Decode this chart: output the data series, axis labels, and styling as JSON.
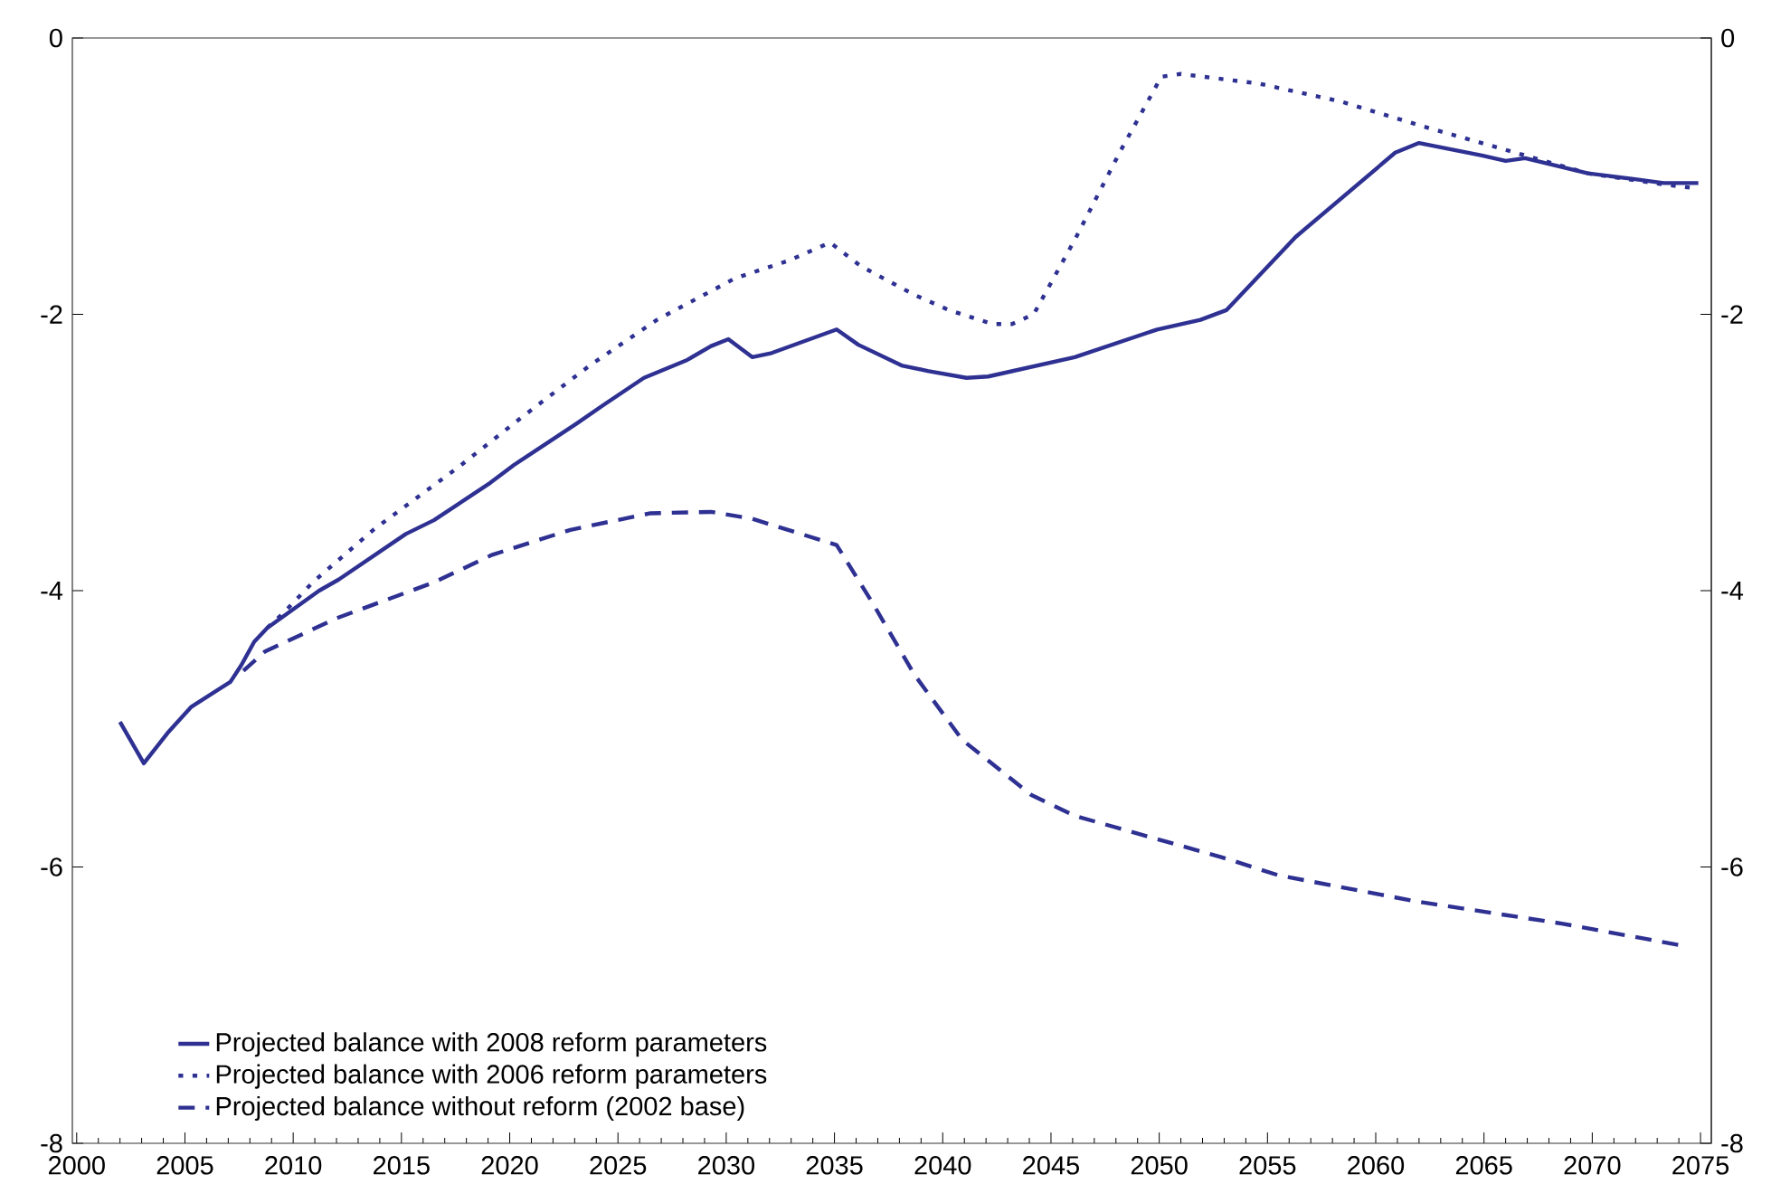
{
  "chart_data": {
    "type": "line",
    "xlim": [
      1999.8,
      2075.5
    ],
    "xticks": [
      2000,
      2005,
      2010,
      2015,
      2020,
      2025,
      2030,
      2035,
      2040,
      2045,
      2050,
      2055,
      2060,
      2065,
      2070,
      2075
    ],
    "ylim": [
      -8,
      0
    ],
    "yticks": [
      -8,
      -6,
      -4,
      -2,
      0
    ],
    "y2lim": [
      -8,
      0
    ],
    "y2ticks": [
      -8,
      -6,
      -4,
      -2,
      0
    ],
    "grid": false,
    "legend": "bottom left",
    "marker": "none",
    "series": [
      {
        "name": "Projected balance with 2008 reform parameters",
        "color": "#2e3192",
        "line_style": "solid",
        "x": [
          2002,
          2003.1,
          2004.2,
          2005.3,
          2007.1,
          2007.6,
          2008.2,
          2008.8,
          2011.2,
          2012.1,
          2015.2,
          2016.5,
          2019.1,
          2020.2,
          2023.1,
          2024.3,
          2026.2,
          2028.2,
          2029.3,
          2030.1,
          2031.2,
          2032.1,
          2035.1,
          2036.1,
          2038.1,
          2039.3,
          2041.1,
          2042.1,
          2046.1,
          2049.9,
          2051.9,
          2053.1,
          2056.3,
          2060.9,
          2062,
          2064.9,
          2066,
          2066.9,
          2069.8,
          2071.9,
          2073.3,
          2074.9
        ],
        "values": [
          -4.95,
          -5.25,
          -5.03,
          -4.84,
          -4.66,
          -4.54,
          -4.37,
          -4.27,
          -4.0,
          -3.92,
          -3.59,
          -3.49,
          -3.22,
          -3.09,
          -2.79,
          -2.66,
          -2.46,
          -2.33,
          -2.23,
          -2.18,
          -2.31,
          -2.28,
          -2.11,
          -2.22,
          -2.37,
          -2.41,
          -2.46,
          -2.45,
          -2.31,
          -2.11,
          -2.04,
          -1.97,
          -1.44,
          -0.83,
          -0.76,
          -0.85,
          -0.89,
          -0.87,
          -0.98,
          -1.02,
          -1.05,
          -1.05
        ]
      },
      {
        "name": "Projected balance with 2006 reform parameters",
        "color": "#2e3192",
        "line_style": "dotted",
        "x": [
          2008.8,
          2009.5,
          2010.9,
          2013.7,
          2017.6,
          2020.6,
          2023.7,
          2026.8,
          2030.4,
          2032.9,
          2034.8,
          2036.2,
          2038.7,
          2040.3,
          2042.3,
          2043.2,
          2044.2,
          2046.1,
          2048.2,
          2050.1,
          2051,
          2054.6,
          2058.4,
          2062.2,
          2066.9,
          2069.8,
          2073.3,
          2074.9
        ],
        "values": [
          -4.27,
          -4.17,
          -3.94,
          -3.56,
          -3.11,
          -2.74,
          -2.37,
          -2.04,
          -1.74,
          -1.61,
          -1.48,
          -1.65,
          -1.86,
          -1.97,
          -2.07,
          -2.07,
          -2.0,
          -1.46,
          -0.82,
          -0.28,
          -0.26,
          -0.33,
          -0.46,
          -0.64,
          -0.85,
          -0.98,
          -1.06,
          -1.09
        ]
      },
      {
        "name": "Projected balance without reform (2002 base)",
        "color": "#2e3192",
        "line_style": "dashed",
        "x": [
          2007.7,
          2008.7,
          2012,
          2016.5,
          2019.2,
          2022.8,
          2026.5,
          2029.3,
          2031.2,
          2035.1,
          2036.8,
          2038.7,
          2040.9,
          2044.1,
          2046.1,
          2052.9,
          2055.5,
          2061.9,
          2068.6,
          2074.2
        ],
        "values": [
          -4.58,
          -4.44,
          -4.2,
          -3.94,
          -3.74,
          -3.56,
          -3.44,
          -3.43,
          -3.48,
          -3.67,
          -4.1,
          -4.61,
          -5.08,
          -5.48,
          -5.63,
          -5.93,
          -6.06,
          -6.25,
          -6.41,
          -6.57
        ]
      }
    ]
  }
}
